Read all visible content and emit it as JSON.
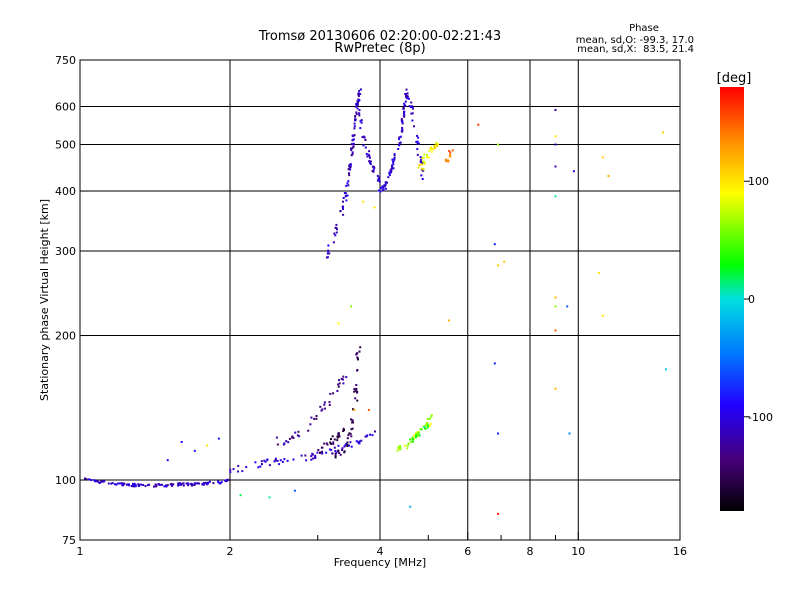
{
  "chart_data": {
    "type": "scatter",
    "title": "Tromsø 20130606 02:20:00-02:21:43",
    "subtitle": "RwPretec (8p)",
    "xlabel": "Frequency [MHz]",
    "ylabel": "Stationary phase Virtual Height [km]",
    "x_scale": "log",
    "y_scale": "log",
    "xlim": [
      1,
      16
    ],
    "ylim": [
      75,
      750
    ],
    "grid": true,
    "x_ticks": [
      1,
      2,
      4,
      6,
      8,
      10,
      16
    ],
    "x_tick_labels": [
      "1",
      "2",
      "4",
      "6",
      "8",
      "10",
      "16"
    ],
    "x_minor_ticks": [
      3,
      5,
      7,
      9
    ],
    "y_ticks": [
      75,
      100,
      200,
      300,
      400,
      500,
      600,
      750
    ],
    "y_tick_labels": [
      "75",
      "100",
      "200",
      "300",
      "400",
      "500",
      "600",
      "750"
    ],
    "colorbar": {
      "label": "[deg]",
      "ticks": [
        100,
        0,
        -100
      ],
      "tick_labels": [
        "100",
        "0",
        "-100"
      ],
      "range": [
        -180,
        180
      ]
    },
    "phase_box": {
      "heading": "Phase",
      "line1": "mean, sd,O: -99.3, 17.0",
      "line2": "mean, sd,X:  83.5, 21.4"
    },
    "traces": [
      {
        "x": [
          1.02,
          1.1,
          1.2,
          1.3,
          1.4,
          1.5,
          1.6,
          1.7,
          1.8,
          1.9,
          2.0
        ],
        "y": [
          101,
          99,
          98,
          97.5,
          97.5,
          97.5,
          98,
          98,
          98.5,
          99,
          100
        ],
        "phase": -110,
        "n": 130,
        "spread": 0.008
      },
      {
        "x": [
          2.0,
          2.3,
          2.6,
          2.9,
          3.2,
          3.5,
          3.9
        ],
        "y": [
          105,
          108,
          110,
          112,
          115,
          118,
          125
        ],
        "phase": -105,
        "n": 70,
        "spread": 0.02
      },
      {
        "x": [
          2.5,
          2.8,
          3.0,
          3.2,
          3.4
        ],
        "y": [
          120,
          125,
          135,
          150,
          165
        ],
        "phase": -130,
        "n": 40,
        "spread": 0.03
      },
      {
        "x": [
          3.2,
          3.4,
          3.55,
          3.6,
          3.62
        ],
        "y": [
          112,
          115,
          135,
          165,
          190
        ],
        "phase": -150,
        "n": 45,
        "spread": 0.02
      },
      {
        "x": [
          3.0,
          3.2,
          3.4
        ],
        "y": [
          115,
          120,
          128
        ],
        "phase": -150,
        "n": 25,
        "spread": 0.02
      },
      {
        "x": [
          3.1,
          3.2,
          3.3,
          3.4,
          3.45
        ],
        "y": [
          290,
          310,
          340,
          380,
          420
        ],
        "phase": -105,
        "n": 35,
        "spread": 0.015
      },
      {
        "x": [
          3.45,
          3.5,
          3.55,
          3.6,
          3.65
        ],
        "y": [
          420,
          470,
          530,
          600,
          650
        ],
        "phase": -115,
        "n": 60,
        "spread": 0.012
      },
      {
        "x": [
          3.6,
          3.7,
          3.8,
          3.9,
          4.0
        ],
        "y": [
          620,
          520,
          470,
          440,
          420
        ],
        "phase": -110,
        "n": 40,
        "spread": 0.015
      },
      {
        "x": [
          4.0,
          4.1,
          4.2,
          4.3,
          4.4
        ],
        "y": [
          400,
          410,
          440,
          480,
          520
        ],
        "phase": -105,
        "n": 45,
        "spread": 0.015
      },
      {
        "x": [
          4.4,
          4.45,
          4.5,
          4.55
        ],
        "y": [
          520,
          570,
          620,
          650
        ],
        "phase": -115,
        "n": 35,
        "spread": 0.012
      },
      {
        "x": [
          4.6,
          4.7,
          4.8,
          4.9
        ],
        "y": [
          620,
          540,
          470,
          420
        ],
        "phase": -110,
        "n": 30,
        "spread": 0.015
      },
      {
        "x": [
          4.8,
          5.0,
          5.2
        ],
        "y": [
          440,
          480,
          500
        ],
        "phase": 95,
        "n": 30,
        "spread": 0.02
      },
      {
        "x": [
          5.4,
          5.5,
          5.6
        ],
        "y": [
          460,
          470,
          490
        ],
        "phase": 140,
        "n": 12,
        "spread": 0.02
      },
      {
        "x": [
          4.3,
          4.5,
          4.7,
          4.9,
          5.1
        ],
        "y": [
          115,
          118,
          122,
          128,
          135
        ],
        "phase": 75,
        "n": 40,
        "spread": 0.02
      },
      {
        "x": [
          4.6,
          4.8,
          5.0
        ],
        "y": [
          120,
          125,
          130
        ],
        "phase": 30,
        "n": 15,
        "spread": 0.02
      }
    ],
    "scattered_points": [
      {
        "x": 2.1,
        "y": 93,
        "phase": 20
      },
      {
        "x": 2.4,
        "y": 92,
        "phase": 10
      },
      {
        "x": 2.7,
        "y": 95,
        "phase": -60
      },
      {
        "x": 4.6,
        "y": 88,
        "phase": -20
      },
      {
        "x": 5.5,
        "y": 215,
        "phase": 120
      },
      {
        "x": 6.8,
        "y": 310,
        "phase": -80
      },
      {
        "x": 6.9,
        "y": 280,
        "phase": 110
      },
      {
        "x": 7.1,
        "y": 285,
        "phase": 110
      },
      {
        "x": 6.8,
        "y": 175,
        "phase": -80
      },
      {
        "x": 6.9,
        "y": 125,
        "phase": -80
      },
      {
        "x": 6.9,
        "y": 85,
        "phase": 170
      },
      {
        "x": 6.3,
        "y": 550,
        "phase": 160
      },
      {
        "x": 6.9,
        "y": 500,
        "phase": 60
      },
      {
        "x": 9.0,
        "y": 590,
        "phase": -120
      },
      {
        "x": 9.0,
        "y": 500,
        "phase": -120
      },
      {
        "x": 9.0,
        "y": 450,
        "phase": -120
      },
      {
        "x": 9.0,
        "y": 520,
        "phase": 100
      },
      {
        "x": 9.0,
        "y": 390,
        "phase": 10
      },
      {
        "x": 9.0,
        "y": 240,
        "phase": 120
      },
      {
        "x": 9.0,
        "y": 230,
        "phase": 60
      },
      {
        "x": 9.0,
        "y": 205,
        "phase": 150
      },
      {
        "x": 9.0,
        "y": 155,
        "phase": 120
      },
      {
        "x": 9.5,
        "y": 230,
        "phase": -60
      },
      {
        "x": 9.6,
        "y": 125,
        "phase": -40
      },
      {
        "x": 9.8,
        "y": 440,
        "phase": -100
      },
      {
        "x": 11.2,
        "y": 470,
        "phase": 110
      },
      {
        "x": 11.5,
        "y": 430,
        "phase": 120
      },
      {
        "x": 11.0,
        "y": 270,
        "phase": 100
      },
      {
        "x": 11.2,
        "y": 220,
        "phase": 100
      },
      {
        "x": 14.8,
        "y": 530,
        "phase": 110
      },
      {
        "x": 15.0,
        "y": 170,
        "phase": -10
      },
      {
        "x": 1.5,
        "y": 110,
        "phase": -90
      },
      {
        "x": 1.7,
        "y": 115,
        "phase": -80
      },
      {
        "x": 1.8,
        "y": 118,
        "phase": 100
      },
      {
        "x": 1.9,
        "y": 122,
        "phase": -80
      },
      {
        "x": 1.6,
        "y": 120,
        "phase": -90
      },
      {
        "x": 3.3,
        "y": 212,
        "phase": 90
      },
      {
        "x": 3.5,
        "y": 230,
        "phase": 60
      },
      {
        "x": 3.7,
        "y": 380,
        "phase": 100
      },
      {
        "x": 3.9,
        "y": 370,
        "phase": 100
      },
      {
        "x": 3.55,
        "y": 140,
        "phase": 130
      },
      {
        "x": 3.8,
        "y": 140,
        "phase": 150
      }
    ]
  }
}
